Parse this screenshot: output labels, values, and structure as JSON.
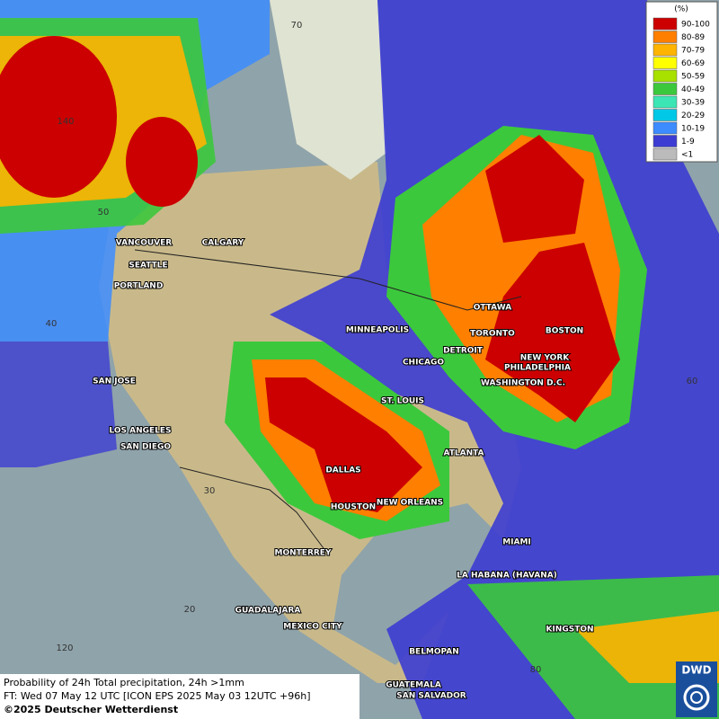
{
  "map": {
    "cities": [
      "VANCOUVER",
      "CALGARY",
      "SEATTLE",
      "PORTLAND",
      "MINNEAPOLIS",
      "OTTAWA",
      "TORONTO",
      "BOSTON",
      "DETROIT",
      "NEW YORK",
      "PHILADELPHIA",
      "CHICAGO",
      "WASHINGTON D.C.",
      "SAN JOSE",
      "ST. LOUIS",
      "LOS ANGELES",
      "SAN DIEGO",
      "ATLANTA",
      "DALLAS",
      "HOUSTON",
      "NEW ORLEANS",
      "MIAMI",
      "MONTERREY",
      "LA HABANA (HAVANA)",
      "GUADALAJARA",
      "KINGSTON",
      "MEXICO CITY",
      "BELMOPAN",
      "GUATEMALA",
      "SAN SALVADOR"
    ],
    "grid_labels": [
      "70",
      "140",
      "50",
      "40",
      "60",
      "30",
      "20",
      "120",
      "80"
    ]
  },
  "legend": {
    "title": "(%)",
    "entries": [
      {
        "label": "90-100",
        "color": "#cc0000"
      },
      {
        "label": "80-89",
        "color": "#ff7f00"
      },
      {
        "label": "70-79",
        "color": "#ffb400"
      },
      {
        "label": "60-69",
        "color": "#ffff00"
      },
      {
        "label": "50-59",
        "color": "#a8e000"
      },
      {
        "label": "40-49",
        "color": "#3cc83c"
      },
      {
        "label": "30-39",
        "color": "#3ce6b4"
      },
      {
        "label": "20-29",
        "color": "#00c8e6"
      },
      {
        "label": "10-19",
        "color": "#3c8cff"
      },
      {
        "label": "1-9",
        "color": "#3c3cd2"
      },
      {
        "label": "<1",
        "color": "#bbbbbb"
      }
    ]
  },
  "footer": {
    "line1": "Probability of 24h Total precipitation, 24h >1mm",
    "line2": "FT: Wed 07 May 12 UTC [ICON EPS 2025 May 03 12UTC +96h]",
    "line3": "©2025 Deutscher Wetterdienst"
  },
  "logo": "DWD"
}
